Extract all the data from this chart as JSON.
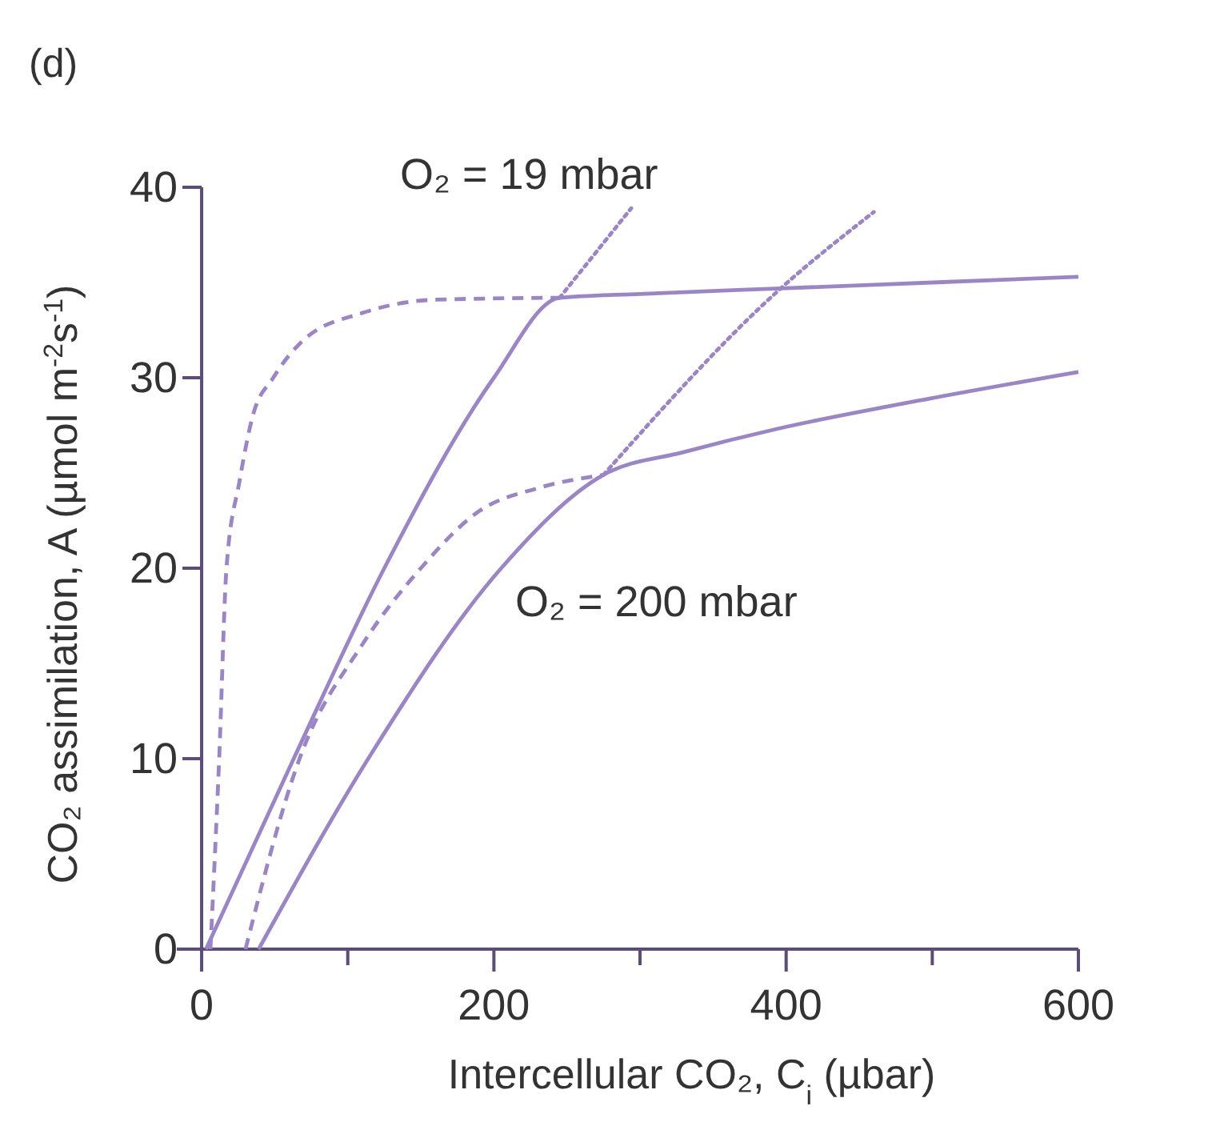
{
  "chart_data": {
    "type": "line",
    "xlabel": "Intercellular CO₂, C$_{i}$ (µbar)",
    "ylabel": "CO₂ assimilation, A (µmol m$^{-2}$s$^{-1}$)",
    "xlim": [
      -17,
      600
    ],
    "ylim": [
      0,
      40
    ],
    "xticks": [
      0,
      {
        "value": 100,
        "label": null
      },
      200,
      {
        "value": 300,
        "label": null
      },
      400,
      {
        "value": 500,
        "label": null
      },
      600
    ],
    "yticks": [
      0,
      10,
      20,
      30,
      40
    ],
    "marker": "none",
    "series": [
      {
        "color": "#9a86c6",
        "line_style": "solid",
        "x": [
          3,
          63,
          125,
          200,
          245,
          300,
          400,
          500,
          600
        ],
        "values": [
          0,
          10,
          20,
          30,
          34.2,
          34.4,
          34.7,
          35,
          35.3
        ]
      },
      {
        "color": "#9a86c6",
        "line_style": "dotted",
        "x": [
          245,
          294
        ],
        "values": [
          34.2,
          38.9
        ]
      },
      {
        "color": "#9a86c6",
        "line_style": "dashed",
        "x": [
          6,
          12,
          17,
          26,
          35,
          49,
          70,
          110,
          161,
          245
        ],
        "values": [
          0,
          10,
          20,
          24.6,
          28,
          30,
          32,
          33.4,
          34.1,
          34.2
        ]
      },
      {
        "color": "#9a86c6",
        "line_style": "solid",
        "x": [
          39,
          114,
          205,
          275,
          330,
          393,
          498,
          600
        ],
        "values": [
          0,
          10,
          20,
          24.9,
          26.1,
          27.3,
          28.9,
          30.3
        ]
      },
      {
        "color": "#9a86c6",
        "line_style": "dashed",
        "x": [
          30,
          67,
          110,
          150,
          190,
          230,
          275
        ],
        "values": [
          0,
          10,
          16,
          20,
          23,
          24.2,
          24.9
        ]
      },
      {
        "color": "#9a86c6",
        "line_style": "dotted",
        "x": [
          275,
          395,
          460
        ],
        "values": [
          24.9,
          34.6,
          38.7
        ]
      }
    ],
    "annotations": [
      "(d)",
      "O₂ = 19 mbar",
      "O₂ = 200 mbar"
    ]
  }
}
